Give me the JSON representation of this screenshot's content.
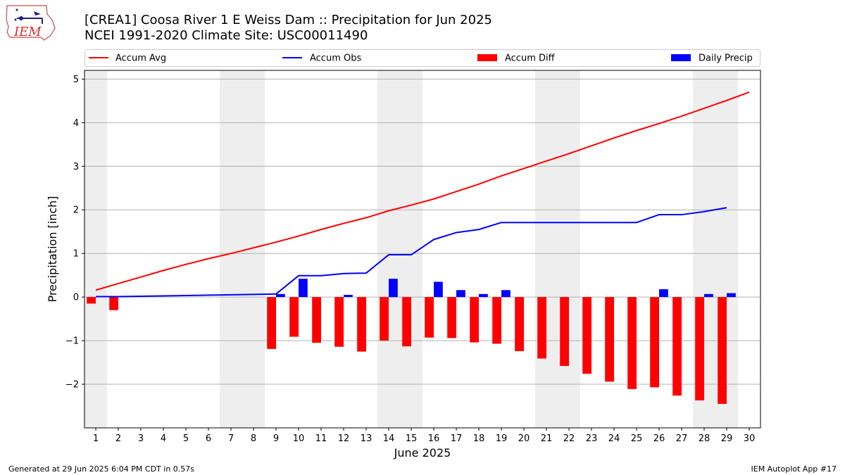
{
  "title_line1": "[CREA1] Coosa River 1 E Weiss Dam :: Precipitation for Jun 2025",
  "title_line2": "NCEI 1991-2020 Climate Site: USC00011490",
  "logo_text": "IEM",
  "footer_left": "Generated at 29 Jun 2025 6:04 PM CDT in 0.57s",
  "footer_right": "IEM Autoplot App #17",
  "colors": {
    "accum_avg": "#ff0000",
    "accum_obs": "#0000ff",
    "accum_diff": "#ff0000",
    "daily_precip": "#0000ff",
    "weekend_shade": "#eeeeee",
    "grid": "#b0b0b0"
  },
  "chart_data": {
    "type": "bar",
    "xlabel": "June 2025",
    "ylabel": "Precipitation [inch]",
    "ylim": [
      -3.0,
      5.2
    ],
    "xlim": [
      0.5,
      30.5
    ],
    "grid": "horizontal",
    "legend_placement": "top",
    "yticks": [
      -2,
      -1,
      0,
      1,
      2,
      3,
      4,
      5
    ],
    "ytick_labels": [
      "−2",
      "−1",
      "0",
      "1",
      "2",
      "3",
      "4",
      "5"
    ],
    "x": [
      1,
      2,
      3,
      4,
      5,
      6,
      7,
      8,
      9,
      10,
      11,
      12,
      13,
      14,
      15,
      16,
      17,
      18,
      19,
      20,
      21,
      22,
      23,
      24,
      25,
      26,
      27,
      28,
      29,
      30
    ],
    "weekend_ranges": [
      [
        0.5,
        1.5
      ],
      [
        6.5,
        8.5
      ],
      [
        13.5,
        15.5
      ],
      [
        20.5,
        22.5
      ],
      [
        27.5,
        29.5
      ]
    ],
    "series": [
      {
        "name": "Accum Avg",
        "kind": "line",
        "x": [
          1,
          2,
          3,
          4,
          5,
          6,
          7,
          8,
          9,
          10,
          11,
          12,
          13,
          14,
          15,
          16,
          17,
          18,
          19,
          20,
          21,
          22,
          23,
          24,
          25,
          26,
          27,
          28,
          29,
          30
        ],
        "values": [
          0.16,
          0.31,
          0.46,
          0.61,
          0.75,
          0.88,
          1.0,
          1.13,
          1.26,
          1.4,
          1.55,
          1.69,
          1.82,
          1.98,
          2.11,
          2.25,
          2.42,
          2.59,
          2.78,
          2.95,
          3.12,
          3.29,
          3.47,
          3.65,
          3.82,
          3.98,
          4.15,
          4.33,
          4.51,
          4.7
        ]
      },
      {
        "name": "Accum Obs",
        "kind": "line",
        "x": [
          1,
          2,
          9,
          10,
          11,
          12,
          13,
          14,
          15,
          16,
          17,
          18,
          19,
          20,
          21,
          22,
          23,
          24,
          25,
          26,
          27,
          28,
          29
        ],
        "values": [
          0.01,
          0.01,
          0.07,
          0.49,
          0.49,
          0.54,
          0.55,
          0.97,
          0.97,
          1.32,
          1.48,
          1.55,
          1.71,
          1.71,
          1.71,
          1.71,
          1.71,
          1.71,
          1.71,
          1.89,
          1.89,
          1.96,
          2.05
        ]
      },
      {
        "name": "Accum Diff",
        "kind": "bar",
        "x": [
          1,
          2,
          9,
          10,
          11,
          12,
          13,
          14,
          15,
          16,
          17,
          18,
          19,
          20,
          21,
          22,
          23,
          24,
          25,
          26,
          27,
          28,
          29
        ],
        "values": [
          -0.15,
          -0.3,
          -1.19,
          -0.91,
          -1.05,
          -1.14,
          -1.25,
          -1.0,
          -1.13,
          -0.93,
          -0.94,
          -1.04,
          -1.07,
          -1.24,
          -1.41,
          -1.58,
          -1.76,
          -1.94,
          -2.11,
          -2.07,
          -2.26,
          -2.37,
          -2.45
        ]
      },
      {
        "name": "Daily Precip",
        "kind": "bar",
        "x": [
          1,
          2,
          9,
          10,
          11,
          12,
          13,
          14,
          15,
          16,
          17,
          18,
          19,
          20,
          21,
          22,
          23,
          24,
          25,
          26,
          27,
          28,
          29
        ],
        "values": [
          0.01,
          0.01,
          0.07,
          0.42,
          0.0,
          0.05,
          0.0,
          0.42,
          0.0,
          0.35,
          0.16,
          0.07,
          0.16,
          0.0,
          0.0,
          0.0,
          0.0,
          0.0,
          0.0,
          0.18,
          0.0,
          0.07,
          0.09
        ]
      }
    ]
  }
}
